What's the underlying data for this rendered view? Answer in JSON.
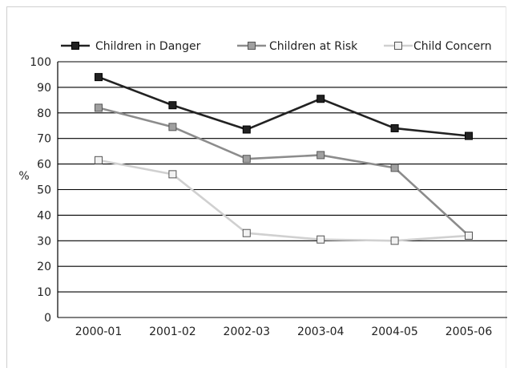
{
  "chart_data": {
    "type": "line",
    "categories": [
      "2000-01",
      "2001-02",
      "2002-03",
      "2003-04",
      "2004-05",
      "2005-06"
    ],
    "ylabel": "%",
    "ylim": [
      0,
      100
    ],
    "yticks": [
      0,
      10,
      20,
      30,
      40,
      50,
      60,
      70,
      80,
      90,
      100
    ],
    "grid": "horizontal",
    "legend_position": "top",
    "series": [
      {
        "name": "Children in Danger",
        "values": [
          94,
          83,
          73.5,
          85.5,
          74,
          71
        ],
        "color": "#222222",
        "marker_fill": "#222222"
      },
      {
        "name": "Children at Risk",
        "values": [
          82,
          74.5,
          62,
          63.5,
          58.5,
          32
        ],
        "color": "#8c8c8c",
        "marker_fill": "#a0a0a0"
      },
      {
        "name": "Child Concern",
        "values": [
          61.5,
          56,
          33,
          30.5,
          30,
          32
        ],
        "color": "#d0d0d0",
        "marker_fill": "#f2f2f2"
      }
    ]
  }
}
